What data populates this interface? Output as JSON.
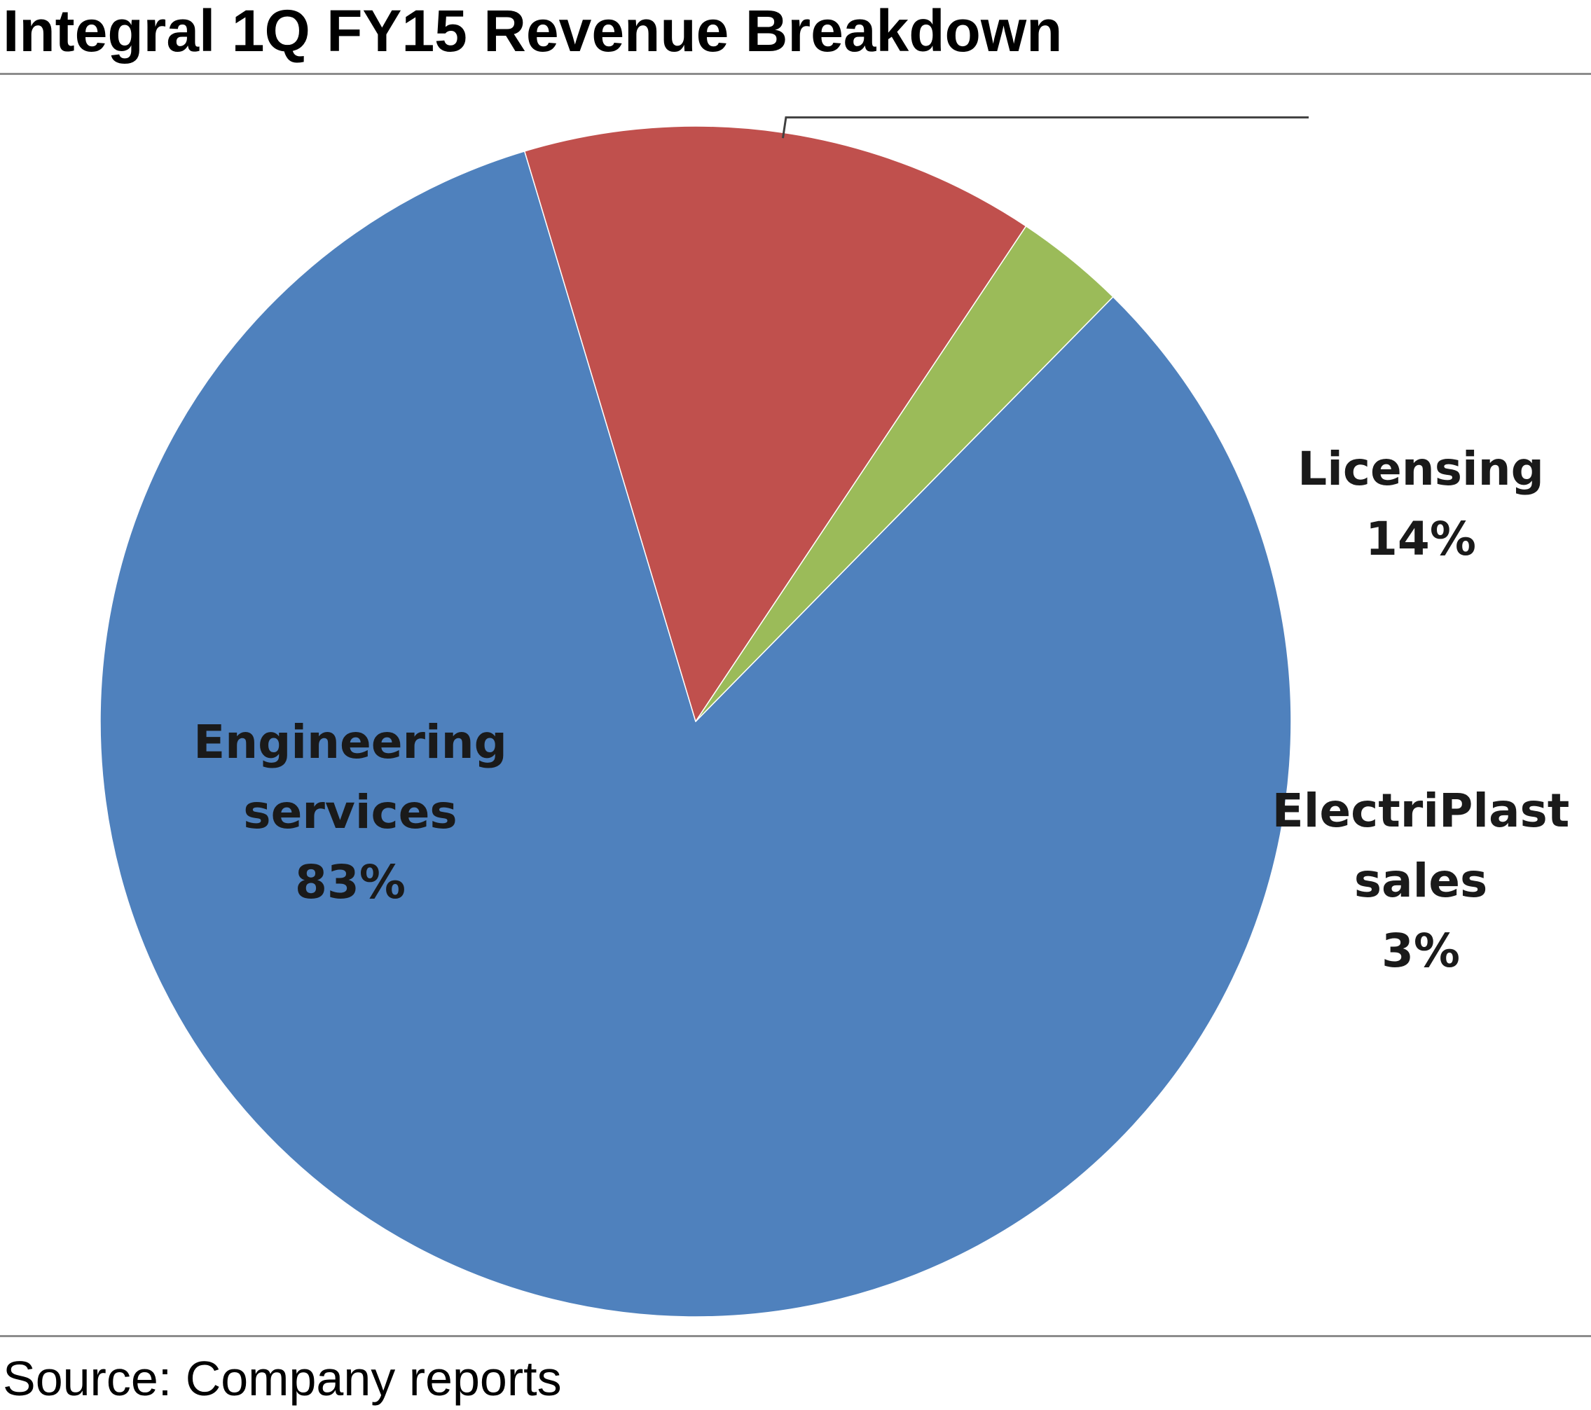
{
  "chart_data": {
    "type": "pie",
    "title": "Integral 1Q FY15 Revenue Breakdown",
    "slices": [
      {
        "label": [
          "Engineering",
          "services"
        ],
        "value": 83,
        "display": "83%",
        "color": "#4F81BD"
      },
      {
        "label": [
          "Licensing"
        ],
        "value": 14,
        "display": "14%",
        "color": "#C0504D"
      },
      {
        "label": [
          "ElectriPlast",
          "sales"
        ],
        "value": 3,
        "display": "3%",
        "color": "#9BBB59"
      }
    ],
    "legend": "none",
    "source": "Source: Company reports"
  }
}
